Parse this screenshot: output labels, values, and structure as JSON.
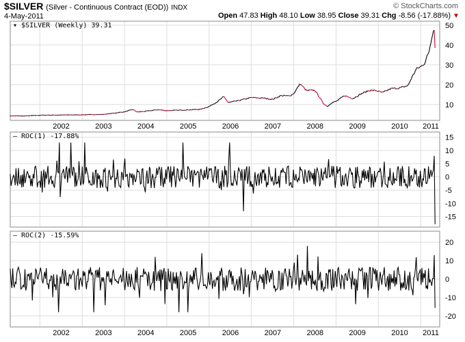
{
  "header": {
    "symbol": "$SILVER",
    "description": "(Silver - Continuous Contract (EOD))",
    "exchange": "INDX",
    "date": "4-May-2011",
    "brand": "© StockCharts.com",
    "open_label": "Open",
    "open": "47.83",
    "high_label": "High",
    "high": "48.10",
    "low_label": "Low",
    "low": "38.95",
    "close_label": "Close",
    "close": "39.31",
    "chg_label": "Chg",
    "chg": "-8.56 (-17.88%)",
    "down_marker": "▼"
  },
  "colors": {
    "up": "#000000",
    "down": "#cc0033",
    "grid": "#dddddd",
    "frame": "#888888"
  },
  "chart_data": [
    {
      "type": "line",
      "legend": "$SILVER (Weekly) 39.31",
      "x_ticks": [
        "2002",
        "2003",
        "2004",
        "2005",
        "2006",
        "2007",
        "2008",
        "2009",
        "2010",
        "2011"
      ],
      "y_ticks": [
        10,
        20,
        30,
        40,
        50
      ],
      "ylim": [
        2,
        52
      ],
      "xlim": [
        2001.3,
        2011.45
      ],
      "grid": true,
      "series": [
        {
          "x": [
            2001.3,
            2001.6,
            2002.0,
            2002.5,
            2003.0,
            2003.5,
            2004.0,
            2004.2,
            2004.3,
            2004.5,
            2004.8,
            2005.0,
            2005.5,
            2005.8,
            2006.0,
            2006.2,
            2006.35,
            2006.45,
            2006.6,
            2006.8,
            2007.0,
            2007.3,
            2007.5,
            2007.7,
            2007.9,
            2008.0,
            2008.15,
            2008.3,
            2008.5,
            2008.6,
            2008.7,
            2008.8,
            2008.9,
            2009.0,
            2009.2,
            2009.4,
            2009.6,
            2009.8,
            2009.95,
            2010.1,
            2010.3,
            2010.5,
            2010.7,
            2010.8,
            2010.9,
            2011.0,
            2011.1,
            2011.2,
            2011.28,
            2011.32,
            2011.34
          ],
          "y": [
            4.3,
            4.2,
            4.6,
            4.7,
            4.8,
            5.0,
            6.3,
            7.5,
            6.2,
            6.6,
            7.4,
            6.9,
            7.3,
            7.6,
            9.0,
            11.5,
            14.0,
            11.0,
            11.5,
            12.5,
            13.5,
            13.2,
            12.6,
            14.5,
            14.3,
            15.5,
            20.5,
            17.0,
            17.2,
            14.0,
            10.5,
            9.0,
            11.0,
            11.5,
            14.5,
            13.0,
            15.5,
            17.2,
            17.0,
            16.0,
            18.0,
            18.3,
            19.5,
            24.0,
            28.0,
            29.0,
            31.0,
            37.0,
            46.0,
            48.1,
            39.31
          ]
        }
      ]
    },
    {
      "type": "line",
      "legend": "ROC(1) -17.88%",
      "x_ticks": [],
      "y_ticks": [
        -15,
        -10,
        -5,
        0,
        5,
        10,
        15
      ],
      "ylim": [
        -19,
        17
      ],
      "grid": true,
      "series": [
        {
          "x_range": [
            2001.3,
            2011.34
          ],
          "stats": "weekly rate of change, oscillating mostly between -5 and 8, final value -17.88",
          "values_sample": [
            5,
            1,
            -2,
            3,
            -1,
            4,
            0,
            -3,
            6,
            2,
            -4,
            1,
            3,
            -2,
            11,
            -5,
            2,
            0,
            -3,
            4
          ]
        }
      ]
    },
    {
      "type": "line",
      "legend": "ROC(2) -15.59%",
      "x_ticks": [
        "2002",
        "2003",
        "2004",
        "2005",
        "2006",
        "2007",
        "2008",
        "2009",
        "2010",
        "2011"
      ],
      "y_ticks": [
        -20,
        -10,
        0,
        10,
        20
      ],
      "ylim": [
        -26,
        26
      ],
      "grid": true,
      "series": [
        {
          "x_range": [
            2001.3,
            2011.34
          ],
          "stats": "two-week rate of change, mostly between -10 and 12, final value -15.59",
          "values_sample": [
            5,
            -3,
            0,
            2,
            -1,
            4,
            8,
            -6,
            3,
            -2,
            12,
            -4,
            0,
            6,
            -8,
            2,
            14,
            -12,
            5,
            -15.59
          ]
        }
      ]
    }
  ]
}
